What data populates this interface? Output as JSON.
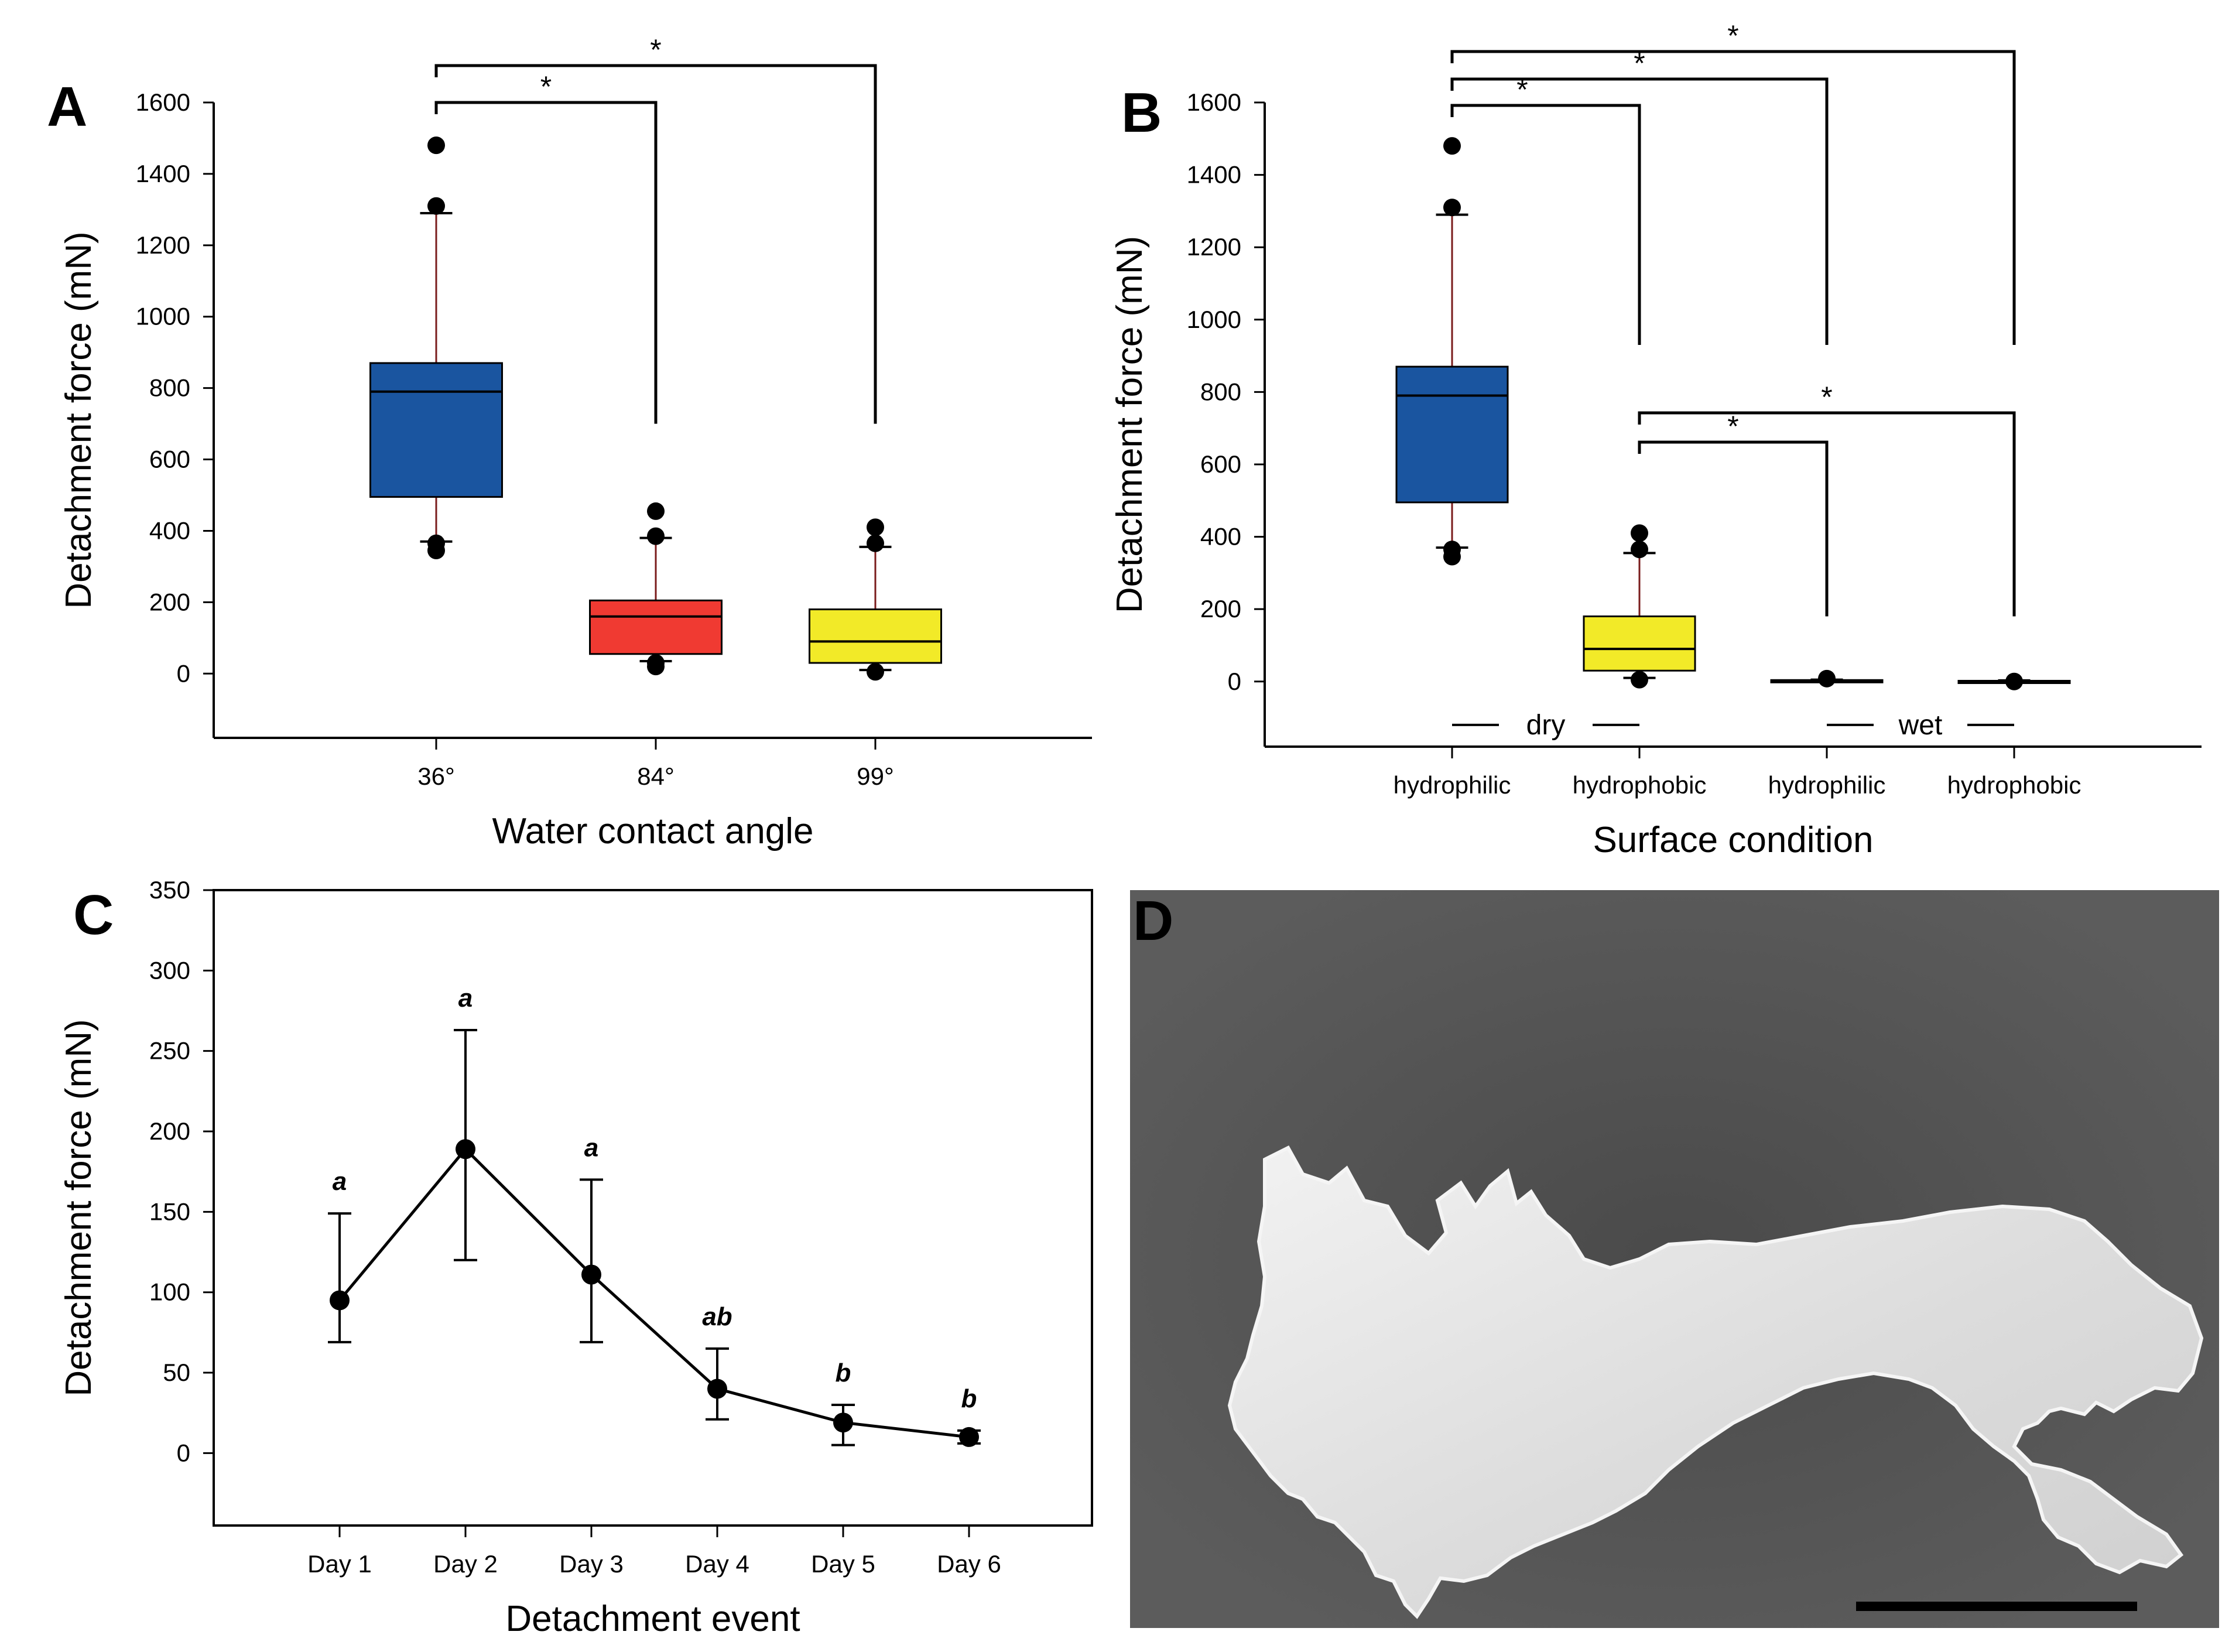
{
  "figure": {
    "panels": {
      "A": {
        "letter": "A"
      },
      "B": {
        "letter": "B"
      },
      "C": {
        "letter": "C"
      },
      "D": {
        "letter": "D"
      }
    }
  },
  "chart_data": [
    {
      "panel": "A",
      "type": "box",
      "title": "",
      "xlabel": "Water contact angle",
      "ylabel": "Detachment force (mN)",
      "ylim": [
        -180,
        1600
      ],
      "yticks": [
        0,
        200,
        400,
        600,
        800,
        1000,
        1200,
        1400,
        1600
      ],
      "categories": [
        "36°",
        "84°",
        "99°"
      ],
      "colors": [
        "#1a55a0",
        "#f03a32",
        "#f2ea28"
      ],
      "boxes": [
        {
          "category": "36°",
          "q1": 495,
          "median": 790,
          "q3": 870,
          "whisker_low": 370,
          "whisker_high": 1290,
          "outliers": [
            345,
            365,
            1310,
            1480
          ]
        },
        {
          "category": "84°",
          "q1": 55,
          "median": 160,
          "q3": 205,
          "whisker_low": 35,
          "whisker_high": 380,
          "outliers": [
            20,
            30,
            385,
            455
          ]
        },
        {
          "category": "99°",
          "q1": 30,
          "median": 90,
          "q3": 180,
          "whisker_low": 10,
          "whisker_high": 355,
          "outliers": [
            5,
            365,
            410
          ]
        }
      ],
      "significance": [
        {
          "from": "36°",
          "to": "84°",
          "label": "*"
        },
        {
          "from": "36°",
          "to": "99°",
          "label": "*"
        }
      ]
    },
    {
      "panel": "B",
      "type": "box",
      "title": "",
      "xlabel": "Surface condition",
      "ylabel": "Detachment force (mN)",
      "ylim": [
        -180,
        1600
      ],
      "yticks": [
        0,
        200,
        400,
        600,
        800,
        1000,
        1200,
        1400,
        1600
      ],
      "categories": [
        "hydrophilic",
        "hydrophobic",
        "hydrophilic",
        "hydrophobic"
      ],
      "groups": [
        {
          "label": "dry",
          "members": [
            0,
            1
          ]
        },
        {
          "label": "wet",
          "members": [
            2,
            3
          ]
        }
      ],
      "colors": [
        "#1a55a0",
        "#f2ea28",
        "#f03a32",
        "#f03a32"
      ],
      "boxes": [
        {
          "category": "hydrophilic",
          "q1": 495,
          "median": 790,
          "q3": 870,
          "whisker_low": 370,
          "whisker_high": 1290,
          "outliers": [
            345,
            365,
            1310,
            1480
          ]
        },
        {
          "category": "hydrophobic",
          "q1": 30,
          "median": 90,
          "q3": 180,
          "whisker_low": 10,
          "whisker_high": 355,
          "outliers": [
            5,
            365,
            410
          ]
        },
        {
          "category": "hydrophilic",
          "q1": 0,
          "median": 2,
          "q3": 4,
          "whisker_low": 0,
          "whisker_high": 5,
          "outliers": [
            8
          ]
        },
        {
          "category": "hydrophobic",
          "q1": 0,
          "median": 1,
          "q3": 2,
          "whisker_low": 0,
          "whisker_high": 3,
          "outliers": [
            0
          ]
        }
      ],
      "significance": [
        {
          "from": 0,
          "to": 1,
          "label": "*"
        },
        {
          "from": 0,
          "to": 2,
          "label": "*"
        },
        {
          "from": 0,
          "to": 3,
          "label": "*"
        },
        {
          "from": 1,
          "to": 2,
          "label": "*"
        },
        {
          "from": 1,
          "to": 3,
          "label": "*"
        }
      ]
    },
    {
      "panel": "C",
      "type": "line",
      "title": "",
      "xlabel": "Detachment event",
      "ylabel": "Detachment force (mN)",
      "ylim": [
        -45,
        350
      ],
      "yticks": [
        0,
        50,
        100,
        150,
        200,
        250,
        300,
        350
      ],
      "categories": [
        "Day 1",
        "Day 2",
        "Day 3",
        "Day 4",
        "Day 5",
        "Day 6"
      ],
      "series": [
        {
          "name": "Detachment force",
          "values": [
            95,
            189,
            111,
            40,
            19,
            10
          ],
          "error_low": [
            69,
            120,
            69,
            21,
            5,
            6
          ],
          "error_high": [
            149,
            263,
            170,
            65,
            30,
            14
          ],
          "letters": [
            "a",
            "a",
            "a",
            "ab",
            "b",
            "b"
          ]
        }
      ]
    }
  ]
}
